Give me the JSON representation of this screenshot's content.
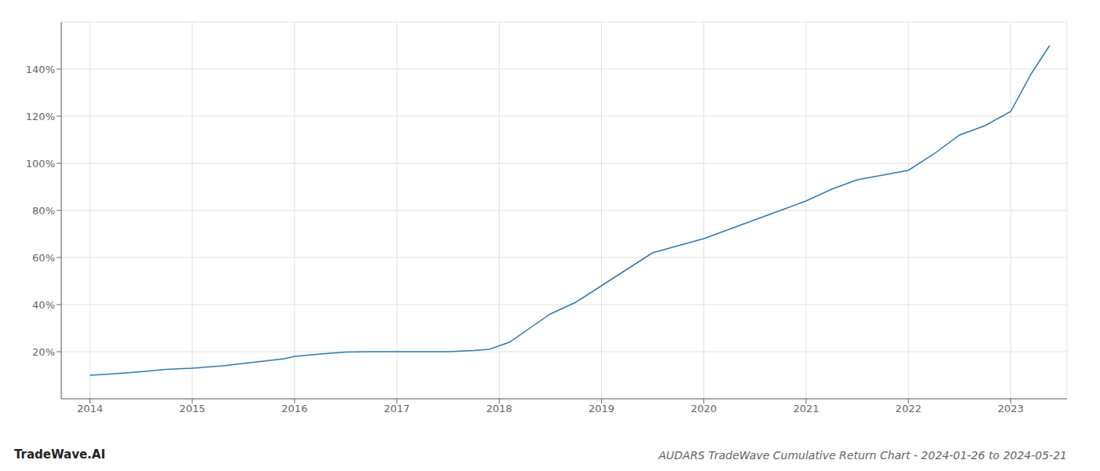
{
  "chart_data": {
    "type": "line",
    "title": "AUDARS TradeWave Cumulative Return Chart - 2024-01-26 to 2024-05-21",
    "annotations": [
      "TradeWave.AI"
    ],
    "x": [
      2014.0,
      2014.2,
      2014.5,
      2014.75,
      2015.0,
      2015.3,
      2015.6,
      2015.9,
      2016.0,
      2016.25,
      2016.5,
      2016.75,
      2017.0,
      2017.25,
      2017.5,
      2017.75,
      2017.9,
      2018.1,
      2018.3,
      2018.5,
      2018.75,
      2019.0,
      2019.25,
      2019.5,
      2019.75,
      2020.0,
      2020.25,
      2020.5,
      2020.75,
      2021.0,
      2021.25,
      2021.5,
      2021.75,
      2022.0,
      2022.25,
      2022.5,
      2022.75,
      2023.0,
      2023.2,
      2023.38
    ],
    "values": [
      10,
      10.5,
      11.5,
      12.5,
      13,
      14,
      15.5,
      17,
      18,
      19,
      19.8,
      20,
      20,
      20,
      20,
      20.5,
      21,
      24,
      30,
      36,
      41,
      48,
      55,
      62,
      65,
      68,
      72,
      76,
      80,
      84,
      89,
      93,
      95,
      97,
      104,
      112,
      116,
      122,
      138,
      150
    ],
    "color": "#2b7bba",
    "xlim": [
      2013.72,
      2023.55
    ],
    "ylim": [
      0,
      160
    ],
    "xticks": [
      2014,
      2015,
      2016,
      2017,
      2018,
      2019,
      2020,
      2021,
      2022,
      2023
    ],
    "yticks": [
      {
        "value": 20,
        "label": "20%"
      },
      {
        "value": 40,
        "label": "40%"
      },
      {
        "value": 60,
        "label": "60%"
      },
      {
        "value": 80,
        "label": "80%"
      },
      {
        "value": 100,
        "label": "100%"
      },
      {
        "value": 120,
        "label": "120%"
      },
      {
        "value": 140,
        "label": "140%"
      }
    ],
    "grid": true
  }
}
